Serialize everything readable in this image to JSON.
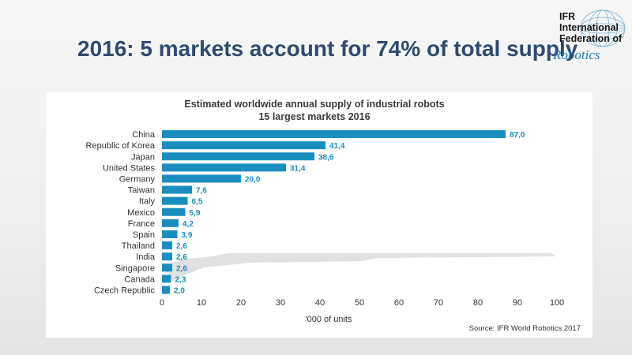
{
  "slide": {
    "title": "2016: 5 markets account for 74% of total supply"
  },
  "logo": {
    "line1": "IFR",
    "line2": "International",
    "line3": "Federation of",
    "script": "Robotics"
  },
  "colors": {
    "bar": "#1b8ec0",
    "title": "#2f4a6e"
  },
  "chart_data": {
    "type": "bar",
    "orientation": "horizontal",
    "title": "Estimated worldwide  annual supply of industrial robots",
    "subtitle": "15 largest markets 2016",
    "categories": [
      "China",
      "Republic of Korea",
      "Japan",
      "United States",
      "Germany",
      "Taiwan",
      "Italy",
      "Mexico",
      "France",
      "Spain",
      "Thailand",
      "India",
      "Singapore",
      "Canada",
      "Czech Republic"
    ],
    "values": [
      87.0,
      41.4,
      38.6,
      31.4,
      20.0,
      7.6,
      6.5,
      5.9,
      4.2,
      3.9,
      2.6,
      2.6,
      2.6,
      2.3,
      2.0
    ],
    "value_labels": [
      "87,0",
      "41,4",
      "38,6",
      "31,4",
      "20,0",
      "7,6",
      "6,5",
      "5,9",
      "4,2",
      "3,9",
      "2,6",
      "2,6",
      "2,6",
      "2,3",
      "2,0"
    ],
    "xlabel": "'000 of units",
    "ylabel": "",
    "xlim": [
      0,
      100
    ],
    "xticks": [
      "0",
      "10",
      "20",
      "30",
      "40",
      "50",
      "60",
      "70",
      "80",
      "90",
      "100"
    ],
    "grid": false,
    "source": "Source: IFR World Robotics 2017"
  }
}
